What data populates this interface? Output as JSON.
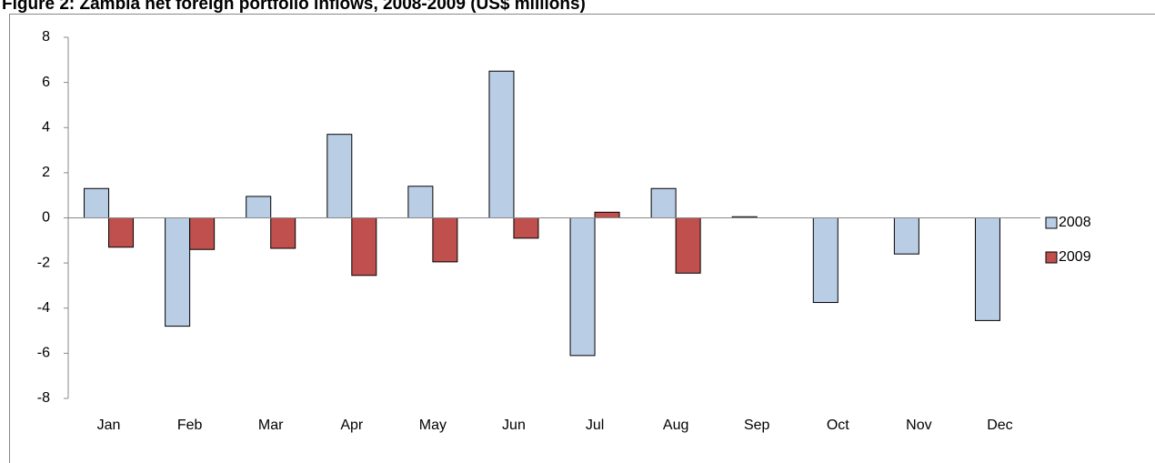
{
  "chart_data": {
    "type": "bar",
    "title": "Figure 2: Zambia net foreign portfolio inflows, 2008-2009 (US$ millions)",
    "categories": [
      "Jan",
      "Feb",
      "Mar",
      "Apr",
      "May",
      "Jun",
      "Jul",
      "Aug",
      "Sep",
      "Oct",
      "Nov",
      "Dec"
    ],
    "series": [
      {
        "name": "2008",
        "color": "#b9cde5",
        "values": [
          1.3,
          -4.8,
          0.95,
          3.7,
          1.4,
          6.5,
          -6.1,
          1.3,
          0.05,
          -3.75,
          -1.6,
          -4.55
        ]
      },
      {
        "name": "2009",
        "color": "#c0504d",
        "values": [
          -1.3,
          -1.4,
          -1.35,
          -2.55,
          -1.95,
          -0.9,
          0.25,
          -2.45,
          null,
          null,
          null,
          null
        ]
      }
    ],
    "ylim": [
      -8,
      8
    ],
    "yticks": [
      -8,
      -6,
      -4,
      -2,
      0,
      2,
      4,
      6,
      8
    ],
    "legend": "right"
  }
}
